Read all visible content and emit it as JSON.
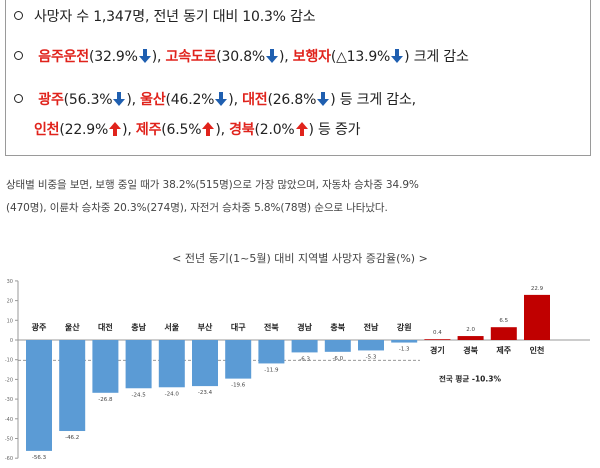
{
  "summary": {
    "line1": {
      "text": "사망자 수 1,347명, 전년 동기 대비 10.3% 감소"
    },
    "line2": {
      "parts": [
        {
          "label": "음주운전",
          "value": "(32.9%",
          "dir": "down",
          "after": ")",
          "sep": ", "
        },
        {
          "label": "고속도로",
          "value": "(30.8%",
          "dir": "down",
          "after": ")",
          "sep": ", "
        },
        {
          "label": "보행자",
          "value": "(△13.9%",
          "dir": "down",
          "after": ")",
          "sep": " "
        }
      ],
      "tail": "크게 감소"
    },
    "line3": {
      "parts": [
        {
          "label": "광주",
          "value": "(56.3%",
          "dir": "down",
          "after": ")",
          "sep": ", "
        },
        {
          "label": "울산",
          "value": "(46.2%",
          "dir": "down",
          "after": ")",
          "sep": ", "
        },
        {
          "label": "대전",
          "value": "(26.8%",
          "dir": "down",
          "after": ")",
          "sep": " "
        }
      ],
      "tail": "등 크게 감소,"
    },
    "line4": {
      "parts": [
        {
          "label": "인천",
          "value": "(22.9%",
          "dir": "up",
          "after": ")",
          "sep": ", "
        },
        {
          "label": "제주",
          "value": "(6.5%",
          "dir": "up",
          "after": ")",
          "sep": ", "
        },
        {
          "label": "경북",
          "value": "(2.0%",
          "dir": "up",
          "after": ")",
          "sep": " "
        }
      ],
      "tail": "등 증가"
    }
  },
  "paragraph": {
    "line1": "상태별 비중을 보면, 보행 중일 때가 38.2%(515명)으로 가장 많았으며, 자동차 승차중 34.9%",
    "line2": "(470명), 이륜차 승차중 20.3%(274명), 자전거 승차중 5.8%(78명) 순으로 나타났다."
  },
  "chart_title": "< 전년 동기(1~5월) 대비 지역별 사망자 증감율(%) >",
  "colors": {
    "negative": "#5b9bd5",
    "positive": "#c00000",
    "down_arrow": "#1f5fb0",
    "up_arrow": "#e0231c",
    "highlight_text": "#e0231c"
  },
  "chart_data": {
    "type": "bar",
    "title": "< 전년 동기(1~5월) 대비 지역별 사망자 증감율(%) >",
    "categories": [
      "광주",
      "울산",
      "대전",
      "충남",
      "서울",
      "부산",
      "대구",
      "전북",
      "경남",
      "충북",
      "전남",
      "강원",
      "경기",
      "경북",
      "제주",
      "인천"
    ],
    "values": [
      -56.3,
      -46.2,
      -26.8,
      -24.5,
      -24.0,
      -23.4,
      -19.6,
      -11.9,
      -6.3,
      -6.0,
      -5.3,
      -1.3,
      0.4,
      2.0,
      6.5,
      22.9
    ],
    "value_labels": [
      "-56.3",
      "-46.2",
      "-26.8",
      "-24.5",
      "-24.0",
      "-23.4",
      "-19.6",
      "-11.9",
      "-6.3",
      "-6.0",
      "-5.3",
      "-1.3",
      "0.4",
      "2.0",
      "6.5",
      "22.9"
    ],
    "ylim": [
      -60,
      30
    ],
    "yticks": [
      -60,
      -50,
      -40,
      -30,
      -20,
      -10,
      0,
      10,
      20,
      30
    ],
    "reference_line": {
      "value": -10.3,
      "label": "전국 평균 -10.3%"
    },
    "grid": false,
    "xlabel": "",
    "ylabel": ""
  }
}
